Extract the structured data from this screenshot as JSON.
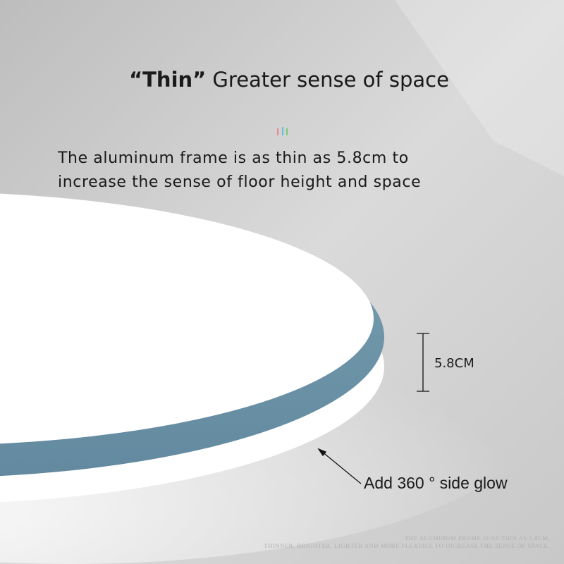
{
  "headline": {
    "quoted": "“Thin”",
    "rest": " Greater sense of space"
  },
  "description": [
    "The aluminum frame is as thin as 5.8cm to",
    "increase the sense of floor height and space"
  ],
  "dimension_label": "5.8CM",
  "glow_label": "Add 360 ° side glow",
  "fine_print": [
    "THE ALUMINUM FRAME IS AS THIN AS 5.8CM.",
    "THINNER, BRIGHTER, LIGHTER AND MORE FLEXIBLE TO INCREASE THE SENSE OF SPACE."
  ],
  "colors": {
    "frame": "#6f94a4",
    "background": "#cfcfcf",
    "text": "#1a1a1a"
  }
}
